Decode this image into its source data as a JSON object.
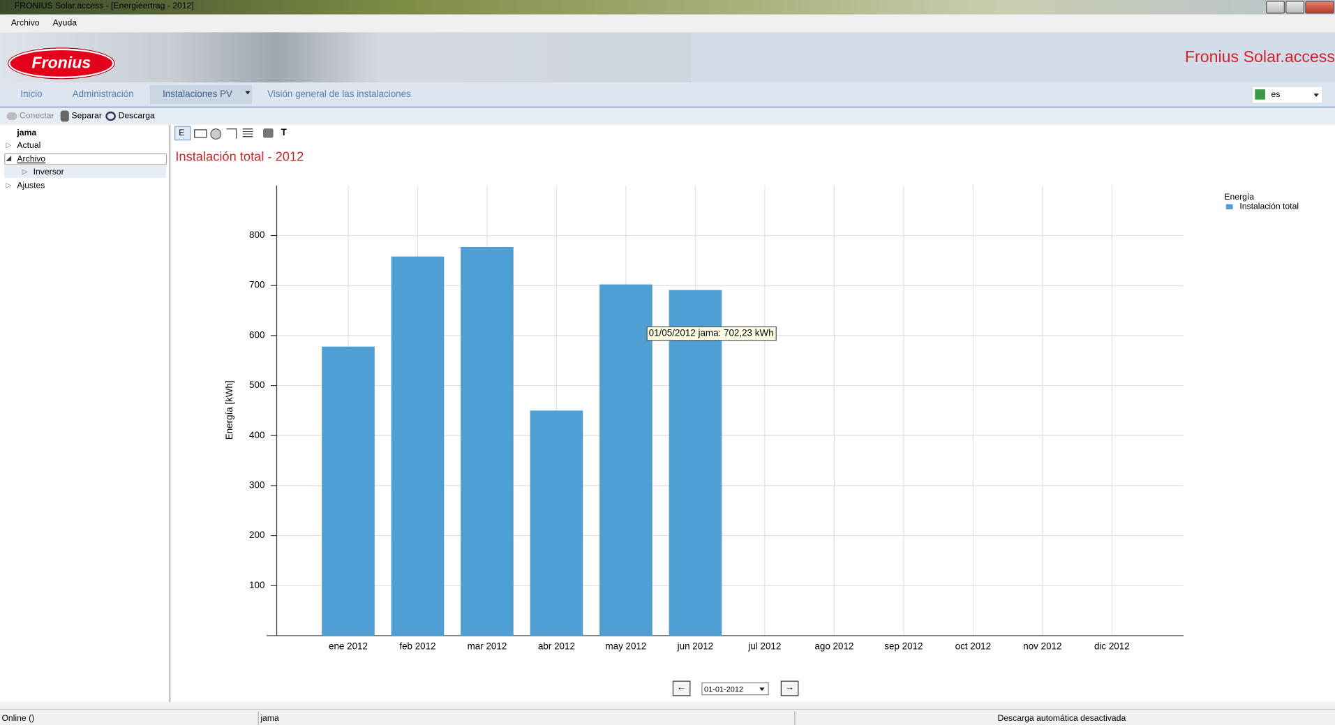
{
  "window": {
    "title": "FRONIUS Solar.access - [Energieertrag - 2012]"
  },
  "menu": [
    "Archivo",
    "Ayuda"
  ],
  "banner": {
    "logo": "Fronius",
    "product": "Fronius Solar.access"
  },
  "nav": {
    "tabs": [
      "Inicio",
      "Administración",
      "Instalaciones PV",
      "Visión general de las instalaciones"
    ],
    "language": "es"
  },
  "toolbar": [
    "Conectar",
    "Separar",
    "Descarga"
  ],
  "tree": [
    "jama",
    "Actual",
    "Archivo",
    "Inversor",
    "Ajustes"
  ],
  "chart_toolbar": [
    "E",
    "T"
  ],
  "chart_data": {
    "type": "bar",
    "title": "Instalación total - 2012",
    "y_label": "Energía [kWh]",
    "legend_title": "Energía",
    "legend": "top-right",
    "categories": [
      "ene 2012",
      "feb 2012",
      "mar 2012",
      "abr 2012",
      "may 2012",
      "jun 2012",
      "jul 2012",
      "ago 2012",
      "sep 2012",
      "oct 2012",
      "nov 2012",
      "dic 2012"
    ],
    "series": [
      {
        "name": "Instalación total",
        "color": "#4f9fd5",
        "values": [
          578,
          758,
          777,
          450,
          702.23,
          691,
          null,
          null,
          null,
          null,
          null,
          null
        ]
      }
    ],
    "ylim": [
      0,
      900
    ],
    "yticks": [
      100,
      200,
      300,
      400,
      500,
      600,
      700,
      800
    ],
    "grid": true,
    "tooltip": "01/05/2012 jama: 702,23 kWh"
  },
  "date_selector": "01-01-2012",
  "status": [
    "Online ()",
    "jama",
    "Descarga automática desactivada"
  ]
}
